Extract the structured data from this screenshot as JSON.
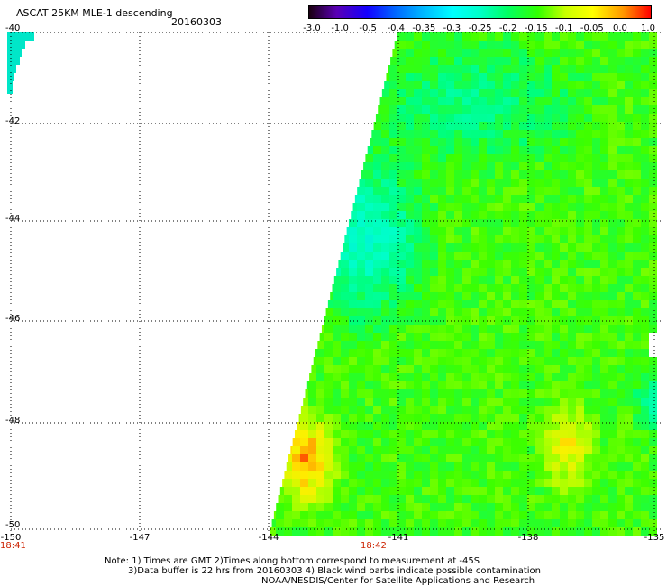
{
  "header": {
    "title": "ASCAT 25KM MLE-1 descending",
    "date": "20160303"
  },
  "colorbar": {
    "labels": [
      "-3.0",
      "-1.0",
      "-0.5",
      "-0.4",
      "-0.35",
      "-0.3",
      "-0.25",
      "-0.2",
      "-0.15",
      "-0.1",
      "-0.05",
      "0.0",
      "1.0"
    ],
    "colors": [
      "#1a0010",
      "#5a00b4",
      "#1400ff",
      "#0064ff",
      "#00b4ff",
      "#00ffff",
      "#00ffc8",
      "#00ff64",
      "#32ff00",
      "#c8ff00",
      "#ffff00",
      "#ff9600",
      "#ff0000"
    ]
  },
  "axes": {
    "lat_labels": [
      "-40",
      "-42",
      "-44",
      "-46",
      "-48",
      "-50"
    ],
    "lon_labels": [
      "-150",
      "-147",
      "-144",
      "-141",
      "-138",
      "-135"
    ],
    "time_labels": [
      "18:41",
      "18:42"
    ]
  },
  "notes": {
    "line1": "Note: 1) Times are GMT 2)Times along bottom correspond to measurement at -45S",
    "line2": "3)Data buffer is 22 hrs from 20160303 4) Black wind barbs indicate possible contamination",
    "line3": "NOAA/NESDIS/Center for Satellite Applications and Research"
  }
}
